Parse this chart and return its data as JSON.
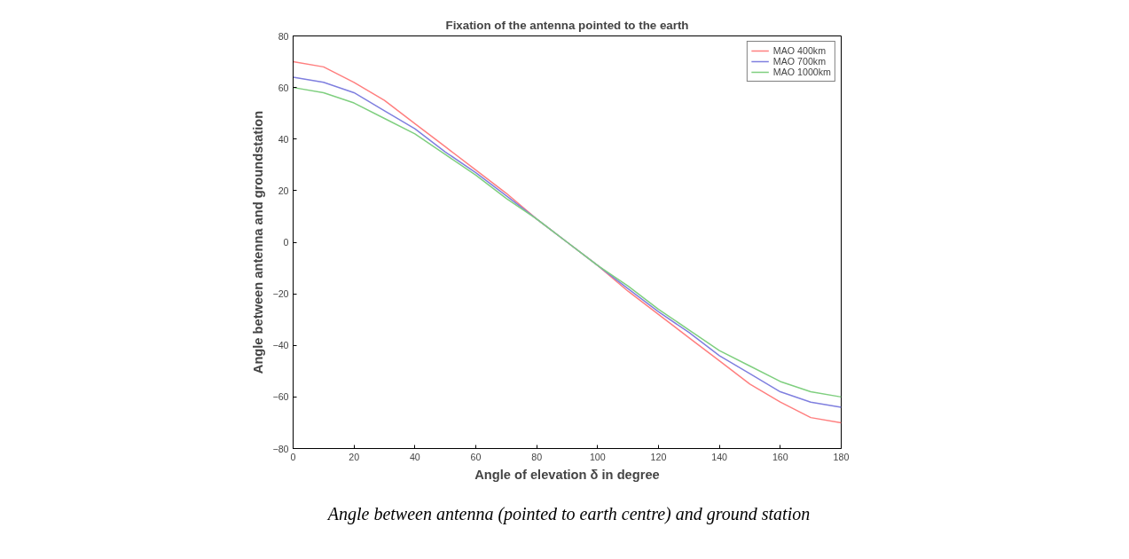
{
  "chart_data": {
    "type": "line",
    "title": "Fixation of the antenna pointed to the earth",
    "xlabel": "Angle of elevation δ in degree",
    "ylabel": "Angle between antenna and groundstation",
    "x": [
      0,
      10,
      20,
      30,
      40,
      50,
      60,
      70,
      80,
      90,
      100,
      110,
      120,
      130,
      140,
      150,
      160,
      170,
      180
    ],
    "series": [
      {
        "name": "MAO 400km",
        "color": "#ff7f7f",
        "values": [
          70,
          68,
          62,
          55,
          46,
          37,
          28,
          19,
          9,
          0,
          -9,
          -19,
          -28,
          -37,
          -46,
          -55,
          -62,
          -68,
          -70
        ]
      },
      {
        "name": "MAO 700km",
        "color": "#7f7fdf",
        "values": [
          64,
          62,
          58,
          51,
          44,
          35,
          27,
          18,
          9,
          0,
          -9,
          -18,
          -27,
          -35,
          -44,
          -51,
          -58,
          -62,
          -64
        ]
      },
      {
        "name": "MAO 1000km",
        "color": "#7fcf7f",
        "values": [
          60,
          58,
          54,
          48,
          42,
          34,
          26,
          17,
          9,
          0,
          -9,
          -17,
          -26,
          -34,
          -42,
          -48,
          -54,
          -58,
          -60
        ]
      }
    ],
    "xlim": [
      0,
      180
    ],
    "xticks": [
      0,
      20,
      40,
      60,
      80,
      100,
      120,
      140,
      160,
      180
    ],
    "ylim": [
      -80,
      80
    ],
    "yticks": [
      -80,
      -60,
      -40,
      -20,
      0,
      20,
      40,
      60,
      80
    ],
    "grid": false,
    "legend": "top right",
    "line_style": "solid",
    "annotations": [
      "Angle between antenna (pointed to earth centre) and ground station"
    ]
  }
}
